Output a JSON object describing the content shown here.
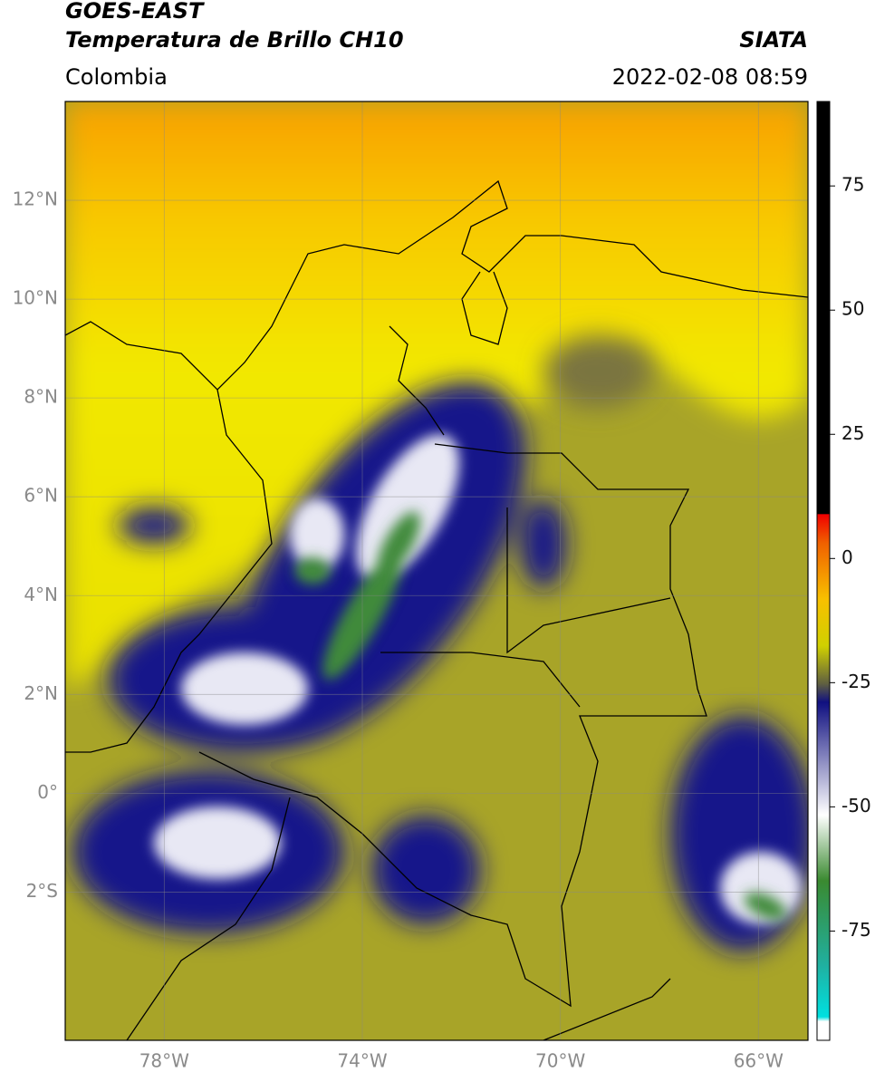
{
  "header": {
    "title": "GOES-EAST",
    "subtitle": "Temperatura de Brillo CH10",
    "region": "Colombia",
    "source": "SIATA",
    "timestamp": "2022-02-08 08:59"
  },
  "map": {
    "lonlim": [
      -80,
      -65
    ],
    "latlim": [
      -5,
      14
    ],
    "lon_ticks": [
      {
        "value": -78,
        "label": "78°W"
      },
      {
        "value": -74,
        "label": "74°W"
      },
      {
        "value": -70,
        "label": "70°W"
      },
      {
        "value": -66,
        "label": "66°W"
      }
    ],
    "lat_ticks": [
      {
        "value": 12,
        "label": "12°N"
      },
      {
        "value": 10,
        "label": "10°N"
      },
      {
        "value": 8,
        "label": "8°N"
      },
      {
        "value": 6,
        "label": "6°N"
      },
      {
        "value": 4,
        "label": "4°N"
      },
      {
        "value": 2,
        "label": "2°N"
      },
      {
        "value": 0,
        "label": "0°"
      },
      {
        "value": -2,
        "label": "2°S"
      }
    ]
  },
  "colorbar": {
    "lim": [
      -97,
      92
    ],
    "ticks": [
      75,
      50,
      25,
      0,
      -25,
      -50,
      -75
    ]
  }
}
